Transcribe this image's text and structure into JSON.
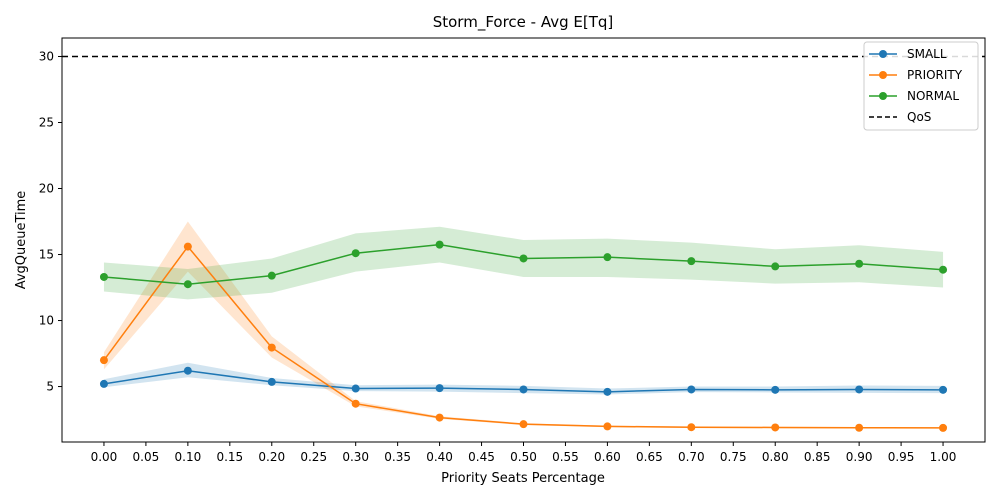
{
  "chart_data": {
    "type": "line",
    "title": "Storm_Force - Avg E[Tq]",
    "xlabel": "Priority Seats Percentage",
    "ylabel": "AvgQueueTime",
    "xlim": [
      -0.05,
      1.05
    ],
    "ylim": [
      0.8,
      31.4
    ],
    "x_ticks": [
      "0.00",
      "0.05",
      "0.10",
      "0.15",
      "0.20",
      "0.25",
      "0.30",
      "0.35",
      "0.40",
      "0.45",
      "0.50",
      "0.55",
      "0.60",
      "0.65",
      "0.70",
      "0.75",
      "0.80",
      "0.85",
      "0.90",
      "0.95",
      "1.00"
    ],
    "y_ticks": [
      "5",
      "10",
      "15",
      "20",
      "25",
      "30"
    ],
    "grid": false,
    "legend_position": "top-right",
    "x": [
      0.0,
      0.1,
      0.2,
      0.3,
      0.4,
      0.5,
      0.6,
      0.7,
      0.8,
      0.9,
      1.0
    ],
    "series": [
      {
        "name": "SMALL",
        "color": "#1f77b4",
        "values": [
          5.2,
          6.2,
          5.35,
          4.85,
          4.88,
          4.78,
          4.6,
          4.78,
          4.75,
          4.78,
          4.75
        ],
        "band_low": [
          4.95,
          5.7,
          5.1,
          4.65,
          4.62,
          4.5,
          4.4,
          4.58,
          4.55,
          4.52,
          4.5
        ],
        "band_high": [
          5.55,
          6.8,
          5.65,
          5.1,
          5.15,
          5.05,
          4.85,
          5.0,
          5.0,
          5.08,
          5.05
        ]
      },
      {
        "name": "PRIORITY",
        "color": "#ff7f0e",
        "values": [
          7.0,
          15.6,
          7.95,
          3.7,
          2.65,
          2.15,
          1.98,
          1.92,
          1.9,
          1.88,
          1.87
        ],
        "band_low": [
          6.3,
          13.7,
          7.2,
          3.5,
          2.55,
          2.08,
          1.92,
          1.86,
          1.84,
          1.82,
          1.81
        ],
        "band_high": [
          7.6,
          17.5,
          8.8,
          3.9,
          2.75,
          2.22,
          2.04,
          1.98,
          1.96,
          1.94,
          1.93
        ]
      },
      {
        "name": "NORMAL",
        "color": "#2ca02c",
        "values": [
          13.3,
          12.75,
          13.4,
          15.1,
          15.75,
          14.7,
          14.8,
          14.5,
          14.1,
          14.3,
          13.85
        ],
        "band_low": [
          12.2,
          11.6,
          12.1,
          13.7,
          14.4,
          13.3,
          13.3,
          13.1,
          12.8,
          12.9,
          12.5
        ],
        "band_high": [
          14.4,
          13.9,
          14.7,
          16.6,
          17.1,
          16.1,
          16.2,
          15.9,
          15.4,
          15.7,
          15.2
        ]
      }
    ],
    "reference_lines": [
      {
        "name": "QoS",
        "y": 30,
        "color": "#000000",
        "style": "dashed"
      }
    ]
  }
}
